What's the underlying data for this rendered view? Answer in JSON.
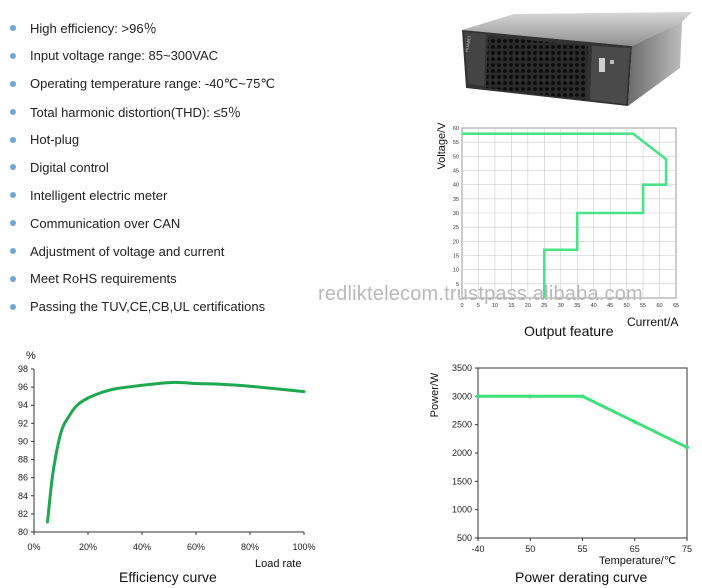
{
  "features": [
    "High efficiency: >96％",
    "Input voltage range: 85~300VAC",
    "Operating temperature range: -40℃~75℃",
    "Total harmonic distortion(THD): ≤5％",
    "Hot-plug",
    "Digital control",
    "Intelligent electric meter",
    "Communication over CAN",
    "Adjustment of voltage and current",
    "Meet RoHS requirements",
    "Passing the TUV,CE,CB,UL certifications"
  ],
  "product_image": {
    "brand_label": "HUAWEI"
  },
  "watermark": "redliktelecom.trustpass.alibaba.com",
  "colors": {
    "curve": "#4be38a",
    "efficiency": "#1fa84f",
    "derating": "#3fe07a",
    "bullet": "#6fa8d6",
    "grid": "#cccccc"
  },
  "chart_data": [
    {
      "type": "line",
      "caption": "Output feature",
      "xlabel": "Current/A",
      "ylabel": "Voltage/V",
      "xlim": [
        0,
        65
      ],
      "ylim": [
        0,
        60
      ],
      "xticks": [
        0,
        5,
        10,
        15,
        20,
        25,
        30,
        35,
        40,
        45,
        50,
        55,
        60,
        65
      ],
      "yticks": [
        5,
        10,
        15,
        20,
        25,
        30,
        35,
        40,
        45,
        50,
        55,
        60
      ],
      "series": [
        {
          "x": [
            25,
            25,
            35,
            35,
            55,
            55,
            62,
            62,
            52,
            0
          ],
          "y": [
            0,
            17,
            17,
            30,
            30,
            40,
            40,
            49,
            58,
            58
          ]
        }
      ]
    },
    {
      "type": "line",
      "caption": "Efficiency curve",
      "xlabel": "Load rate",
      "ylabel": "%",
      "xlim": [
        0,
        100
      ],
      "ylim": [
        80,
        98
      ],
      "xticks": [
        "0%",
        "20%",
        "40%",
        "60%",
        "80%",
        "100%"
      ],
      "yticks": [
        80,
        82,
        84,
        86,
        88,
        90,
        92,
        94,
        96,
        98
      ],
      "series": [
        {
          "x": [
            5,
            7,
            10,
            13,
            16,
            20,
            25,
            30,
            40,
            50,
            55,
            60,
            70,
            80,
            90,
            100
          ],
          "y": [
            81.1,
            86.5,
            91,
            92.8,
            94,
            94.8,
            95.4,
            95.8,
            96.2,
            96.5,
            96.5,
            96.4,
            96.3,
            96.1,
            95.8,
            95.5
          ]
        }
      ]
    },
    {
      "type": "line",
      "caption": "Power derating curve",
      "xlabel": "Temperature/℃",
      "ylabel": "Power/W",
      "xlim": [
        "-40",
        "75"
      ],
      "ylim": [
        500,
        3500
      ],
      "xticks": [
        "-40",
        "50",
        "55",
        "65",
        "75"
      ],
      "yticks": [
        500,
        1000,
        1500,
        2000,
        2500,
        3000,
        3500
      ],
      "series": [
        {
          "x": [
            "-40",
            "50",
            "55",
            "65",
            "75"
          ],
          "y": [
            3000,
            3000,
            3000,
            2550,
            2100
          ]
        }
      ]
    }
  ]
}
